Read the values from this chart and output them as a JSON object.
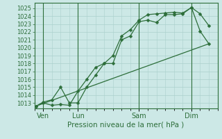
{
  "xlabel": "Pression niveau de la mer( hPa )",
  "bg_color": "#cce8e6",
  "grid_color": "#aad0cc",
  "line_color": "#2d6e3a",
  "vline_color": "#2d6e3a",
  "ylim": [
    1012.3,
    1025.7
  ],
  "xlim": [
    0.0,
    10.5
  ],
  "yticks": [
    1013,
    1014,
    1015,
    1016,
    1017,
    1018,
    1019,
    1020,
    1021,
    1022,
    1023,
    1024,
    1025
  ],
  "xtick_positions": [
    0.5,
    2.5,
    6.0,
    9.0
  ],
  "xtick_labels": [
    "Ven",
    "Lun",
    "Sam",
    "Dim"
  ],
  "vline_positions": [
    0.5,
    2.5,
    6.0,
    9.0
  ],
  "series1_x": [
    0.1,
    0.5,
    1.0,
    1.5,
    2.0,
    2.5,
    3.0,
    3.5,
    4.0,
    4.5,
    5.0,
    5.5,
    6.0,
    6.5,
    7.0,
    7.5,
    8.0,
    8.5,
    9.0,
    9.5,
    10.0
  ],
  "series1_y": [
    1012.6,
    1013.1,
    1013.4,
    1015.0,
    1013.0,
    1013.0,
    1015.0,
    1016.5,
    1018.0,
    1018.0,
    1021.0,
    1021.5,
    1023.3,
    1023.5,
    1023.2,
    1024.2,
    1024.2,
    1024.3,
    1025.1,
    1024.3,
    1022.8
  ],
  "series2_x": [
    0.1,
    0.5,
    1.0,
    1.5,
    2.0,
    2.5,
    3.0,
    3.5,
    4.0,
    4.5,
    5.0,
    5.5,
    6.0,
    6.5,
    7.0,
    7.5,
    8.0,
    8.5,
    9.0,
    9.5,
    10.0
  ],
  "series2_y": [
    1012.6,
    1013.0,
    1012.7,
    1012.8,
    1012.7,
    1014.5,
    1016.0,
    1017.5,
    1018.0,
    1019.0,
    1021.5,
    1022.3,
    1023.5,
    1024.2,
    1024.3,
    1024.4,
    1024.5,
    1024.4,
    1025.1,
    1022.1,
    1020.5
  ],
  "series3_x": [
    0.1,
    10.0
  ],
  "series3_y": [
    1012.6,
    1020.5
  ]
}
